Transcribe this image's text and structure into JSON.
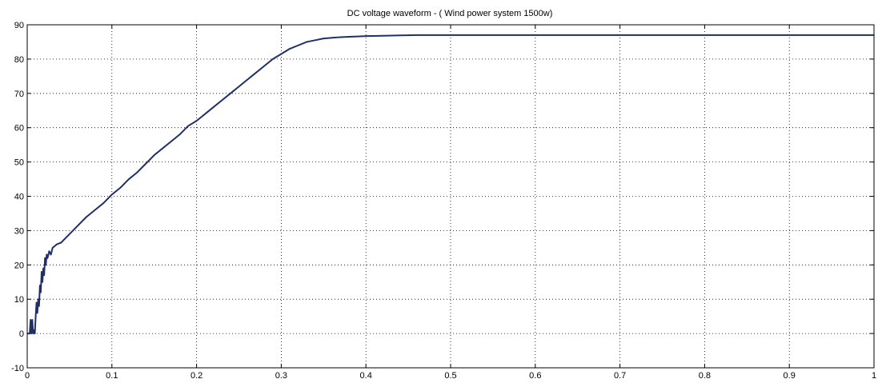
{
  "chart_data": {
    "type": "line",
    "title": "DC voltage waveform - ( Wind power system 1500w)",
    "xlabel": "",
    "ylabel": "",
    "xlim": [
      0,
      1
    ],
    "ylim": [
      -10,
      90
    ],
    "grid": true,
    "x_ticks": [
      0,
      0.1,
      0.2,
      0.3,
      0.4,
      0.5,
      0.6,
      0.7,
      0.8,
      0.9,
      1
    ],
    "x_tick_labels": [
      "0",
      "0.1",
      "0.2",
      "0.3",
      "0.4",
      "0.5",
      "0.6",
      "0.7",
      "0.8",
      "0.9",
      "1"
    ],
    "y_ticks": [
      -10,
      0,
      10,
      20,
      30,
      40,
      50,
      60,
      70,
      80,
      90
    ],
    "y_tick_labels": [
      "-10",
      "0",
      "10",
      "20",
      "30",
      "40",
      "50",
      "60",
      "70",
      "80",
      "90"
    ],
    "series": [
      {
        "color": "#1f2f6b",
        "x": [
          0,
          0.003,
          0.004,
          0.005,
          0.006,
          0.007,
          0.008,
          0.009,
          0.01,
          0.011,
          0.012,
          0.013,
          0.014,
          0.015,
          0.016,
          0.017,
          0.018,
          0.019,
          0.02,
          0.021,
          0.022,
          0.023,
          0.024,
          0.026,
          0.028,
          0.03,
          0.035,
          0.04,
          0.05,
          0.06,
          0.07,
          0.08,
          0.09,
          0.1,
          0.11,
          0.12,
          0.13,
          0.14,
          0.15,
          0.16,
          0.17,
          0.18,
          0.19,
          0.2,
          0.21,
          0.22,
          0.23,
          0.24,
          0.25,
          0.26,
          0.27,
          0.28,
          0.29,
          0.3,
          0.31,
          0.32,
          0.33,
          0.34,
          0.35,
          0.36,
          0.37,
          0.38,
          0.39,
          0.4,
          0.42,
          0.44,
          0.46,
          0.5,
          0.6,
          0.7,
          0.8,
          0.9,
          1.0
        ],
        "y": [
          0,
          0,
          4,
          0,
          4,
          0,
          1,
          0,
          5,
          9,
          6,
          10,
          8,
          14,
          12,
          18,
          15,
          19,
          17,
          22,
          20,
          23,
          22,
          24,
          23,
          25,
          26,
          26.5,
          29,
          31.5,
          34,
          36,
          38,
          40.5,
          42.5,
          45,
          47,
          49.5,
          52,
          54,
          56,
          58,
          60.5,
          62,
          64,
          66,
          68,
          70,
          72,
          74,
          76,
          78,
          80,
          81.5,
          83,
          84,
          85,
          85.5,
          86,
          86.2,
          86.4,
          86.5,
          86.6,
          86.7,
          86.8,
          86.9,
          87,
          87,
          87,
          87,
          87,
          87,
          87
        ]
      }
    ]
  }
}
